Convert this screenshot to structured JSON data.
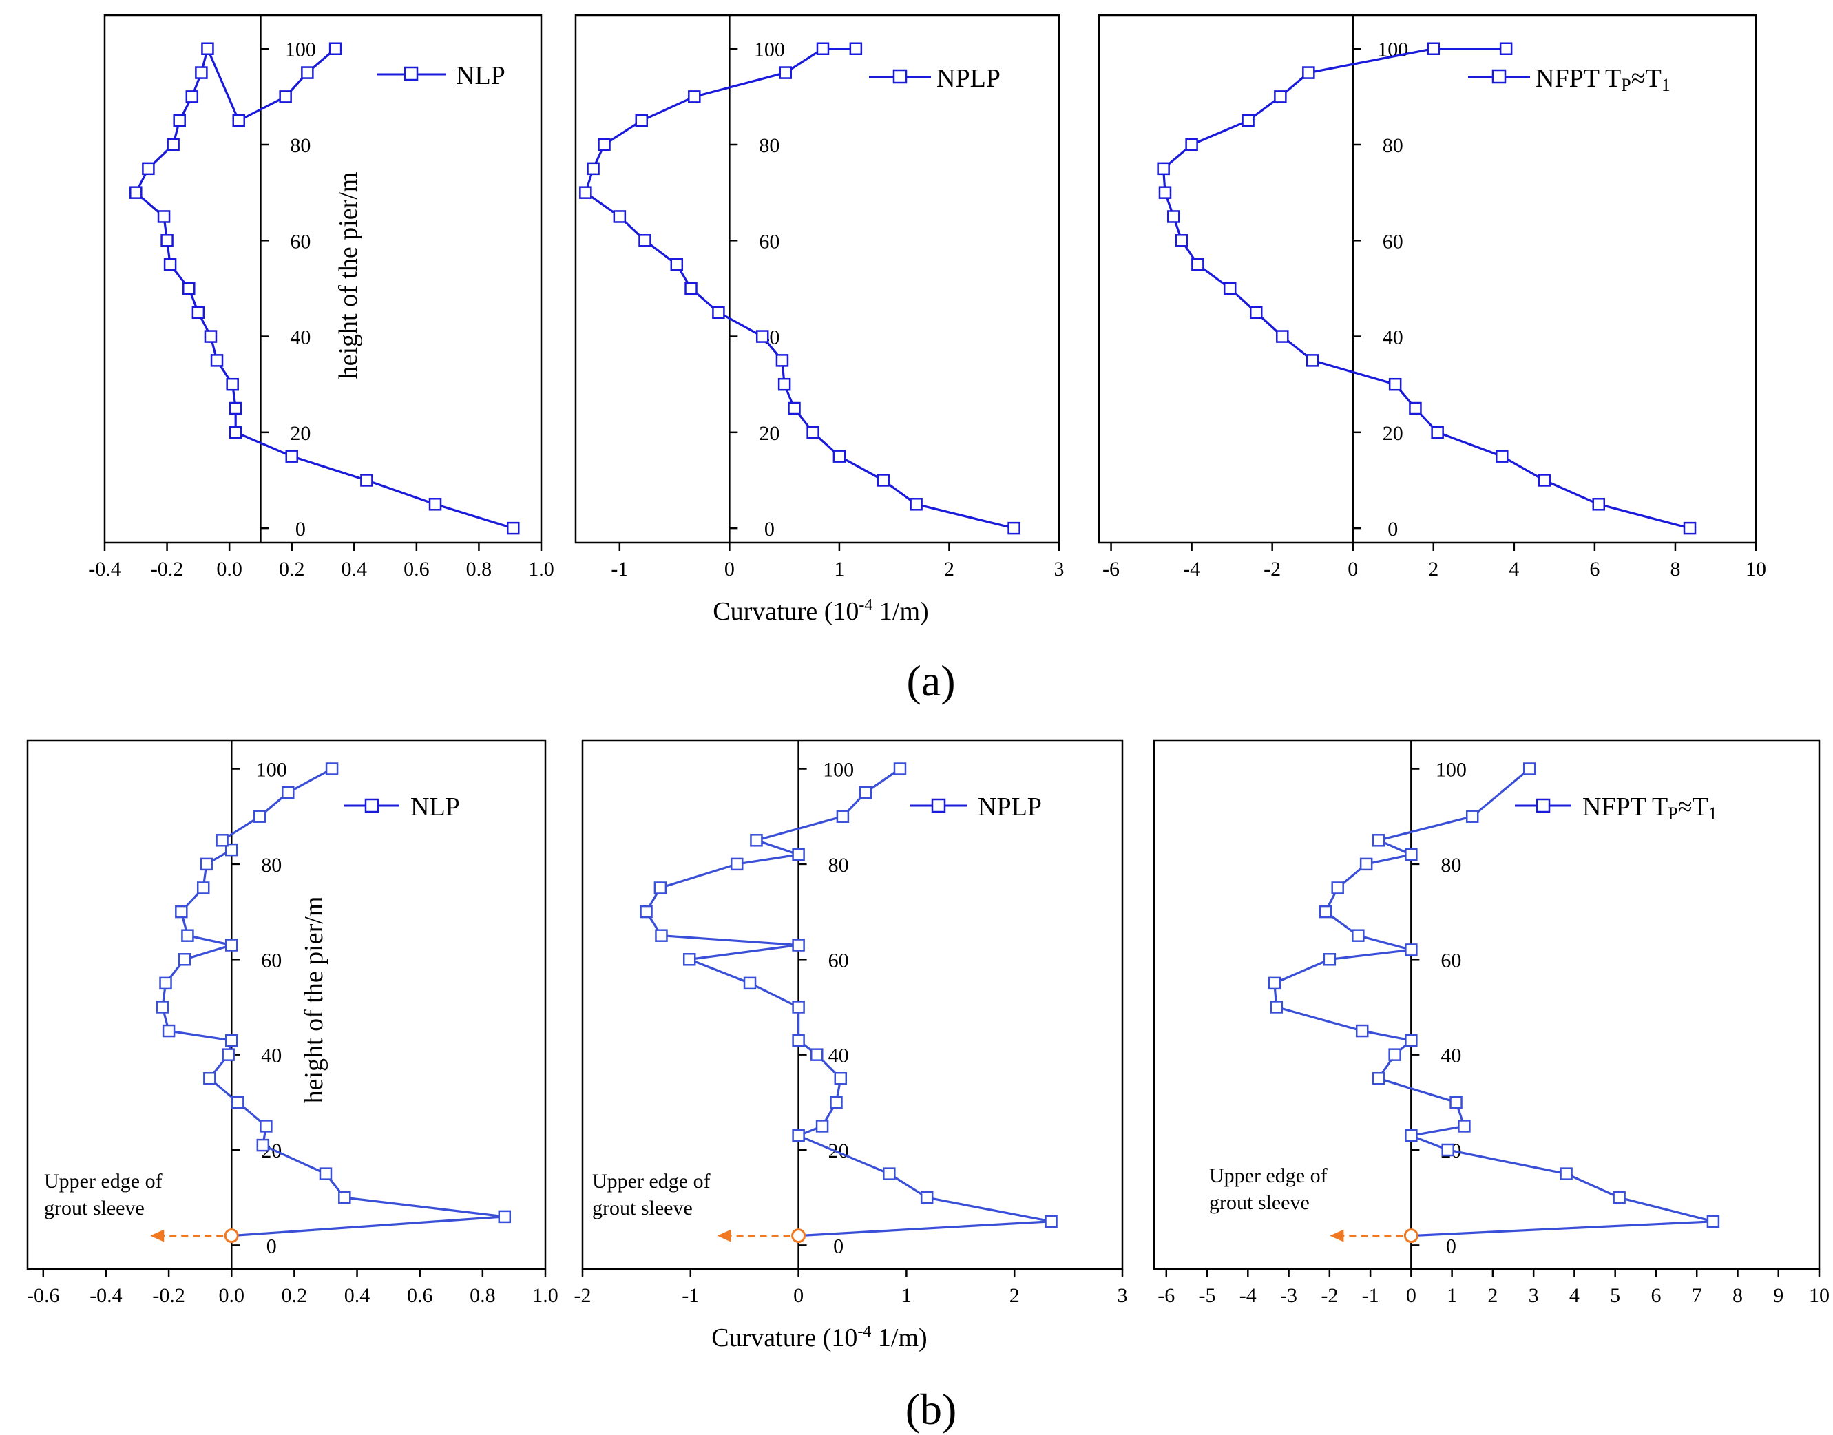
{
  "colors": {
    "series": "#1a1adc",
    "series_b": "#3a4fd8",
    "annotation": "#f07820",
    "axis": "#000000"
  },
  "figure": {
    "xlabel": "Curvature (10",
    "xlabel_exp": "-4",
    "xlabel_unit": " 1/m)",
    "ylabel": "height of the pier/m",
    "panel_a": "(a)",
    "panel_b": "(b)",
    "annotation": [
      "Upper edge of",
      "grout sleeve"
    ]
  },
  "chart_data": [
    {
      "type": "line",
      "id": "a1",
      "row": "a",
      "legend": "NLP",
      "xlim": [
        -0.4,
        1.0
      ],
      "xticks": [
        -0.4,
        -0.2,
        0.0,
        0.2,
        0.4,
        0.6,
        0.8,
        1.0
      ],
      "xtick_labels": [
        "-0.4",
        "-0.2",
        "0.0",
        "0.2",
        "0.4",
        "0.6",
        "0.8",
        "1.0"
      ],
      "zero_x": 0.1,
      "ylim": [
        -3,
        107
      ],
      "yticks": [
        0,
        20,
        40,
        60,
        80,
        100
      ],
      "ytick_labels": [
        "0",
        "20",
        "40",
        "60",
        "80",
        "100"
      ],
      "x": [
        0.91,
        0.66,
        0.44,
        0.2,
        0.02,
        0.02,
        0.01,
        -0.04,
        -0.06,
        -0.1,
        -0.13,
        -0.19,
        -0.2,
        -0.21,
        -0.3,
        -0.26,
        -0.18,
        -0.16,
        -0.12,
        -0.09,
        -0.07,
        0.03,
        0.18,
        0.25,
        0.34
      ],
      "y": [
        0,
        5,
        10,
        15,
        20,
        25,
        30,
        35,
        40,
        45,
        50,
        55,
        60,
        65,
        70,
        75,
        80,
        85,
        90,
        95,
        100,
        85,
        90,
        95,
        100
      ]
    },
    {
      "type": "line",
      "id": "a2",
      "row": "a",
      "legend": "NPLP",
      "xlim": [
        -1.4,
        3.0
      ],
      "xticks": [
        -1,
        0,
        1,
        2,
        3
      ],
      "xtick_labels": [
        "-1",
        "0",
        "1",
        "2",
        "3"
      ],
      "zero_x": 0.0,
      "ylim": [
        -3,
        107
      ],
      "yticks": [
        0,
        20,
        40,
        60,
        80,
        100
      ],
      "ytick_labels": [
        "0",
        "20",
        "40",
        "60",
        "80",
        "100"
      ],
      "x": [
        2.59,
        1.7,
        1.4,
        1.0,
        0.76,
        0.59,
        0.5,
        0.48,
        0.3,
        -0.1,
        -0.35,
        -0.48,
        -0.77,
        -1.0,
        -1.31,
        -1.24,
        -1.14,
        -0.8,
        -0.32,
        0.51,
        0.85,
        1.15
      ],
      "y": [
        0,
        5,
        10,
        15,
        20,
        25,
        30,
        35,
        40,
        45,
        50,
        55,
        60,
        65,
        70,
        75,
        80,
        85,
        90,
        95,
        100,
        100
      ]
    },
    {
      "type": "line",
      "id": "a3",
      "row": "a",
      "legend": "NFPT T",
      "legend_sub1": "P",
      "legend_mid": "≈T",
      "legend_sub2": "1",
      "xlim": [
        -6.3,
        10.0
      ],
      "xticks": [
        -6,
        -4,
        -2,
        0,
        2,
        4,
        6,
        8,
        10
      ],
      "xtick_labels": [
        "-6",
        "-4",
        "-2",
        "0",
        "2",
        "4",
        "6",
        "8",
        "10"
      ],
      "zero_x": 0.0,
      "ylim": [
        -3,
        107
      ],
      "yticks": [
        0,
        20,
        40,
        60,
        80,
        100
      ],
      "ytick_labels": [
        "0",
        "20",
        "40",
        "60",
        "80",
        "100"
      ],
      "x": [
        8.36,
        6.1,
        4.75,
        3.7,
        2.1,
        1.55,
        1.05,
        -1.0,
        -1.75,
        -2.4,
        -3.05,
        -3.85,
        -4.25,
        -4.45,
        -4.66,
        -4.7,
        -4.0,
        -2.6,
        -1.8,
        -1.1,
        2.0,
        3.8
      ],
      "y": [
        0,
        5,
        10,
        15,
        20,
        25,
        30,
        35,
        40,
        45,
        50,
        55,
        60,
        65,
        70,
        75,
        80,
        85,
        90,
        95,
        100,
        100
      ]
    },
    {
      "type": "line",
      "id": "b1",
      "row": "b",
      "legend": "NLP",
      "xlim": [
        -0.65,
        1.0
      ],
      "xticks": [
        -0.6,
        -0.4,
        -0.2,
        0.0,
        0.2,
        0.4,
        0.6,
        0.8,
        1.0
      ],
      "xtick_labels": [
        "-0.6",
        "-0.4",
        "-0.2",
        "0.0",
        "0.2",
        "0.4",
        "0.6",
        "0.8",
        "1.0"
      ],
      "zero_x": 0.0,
      "ylim": [
        -5,
        106
      ],
      "yticks": [
        0,
        20,
        40,
        60,
        80,
        100
      ],
      "ytick_labels": [
        "0",
        "20",
        "40",
        "60",
        "80",
        "100"
      ],
      "x": [
        0.0,
        0.87,
        0.36,
        0.3,
        0.1,
        0.11,
        0.02,
        -0.07,
        -0.01,
        0.0,
        -0.2,
        -0.22,
        -0.21,
        -0.15,
        0.0,
        -0.14,
        -0.16,
        -0.09,
        -0.08,
        0.0,
        -0.03,
        0.09,
        0.18,
        0.32
      ],
      "y": [
        2,
        6,
        10,
        15,
        21,
        25,
        30,
        35,
        40,
        43,
        45,
        50,
        55,
        60,
        63,
        65,
        70,
        75,
        80,
        83,
        85,
        90,
        95,
        100
      ]
    },
    {
      "type": "line",
      "id": "b2",
      "row": "b",
      "legend": "NPLP",
      "xlim": [
        -2.0,
        3.0
      ],
      "xticks": [
        -2,
        -1,
        0,
        1,
        2,
        3
      ],
      "xtick_labels": [
        "-2",
        "-1",
        "0",
        "1",
        "2",
        "3"
      ],
      "zero_x": 0.0,
      "ylim": [
        -5,
        106
      ],
      "yticks": [
        0,
        20,
        40,
        60,
        80,
        100
      ],
      "ytick_labels": [
        "0",
        "20",
        "40",
        "60",
        "80",
        "100"
      ],
      "x": [
        0.0,
        2.34,
        1.19,
        0.84,
        0.0,
        0.22,
        0.35,
        0.39,
        0.17,
        0.0,
        0.0,
        -0.45,
        -1.01,
        0.0,
        -1.27,
        -1.41,
        -1.28,
        -0.57,
        0.0,
        -0.39,
        0.41,
        0.62,
        0.94
      ],
      "y": [
        2,
        5,
        10,
        15,
        23,
        25,
        30,
        35,
        40,
        43,
        50,
        55,
        60,
        63,
        65,
        70,
        75,
        80,
        82,
        85,
        90,
        95,
        100
      ]
    },
    {
      "type": "line",
      "id": "b3",
      "row": "b",
      "legend": "NFPT T",
      "legend_sub1": "P",
      "legend_mid": "≈T",
      "legend_sub2": "1",
      "xlim": [
        -6.3,
        10.0
      ],
      "xticks": [
        -6,
        -5,
        -4,
        -3,
        -2,
        -1,
        0,
        1,
        2,
        3,
        4,
        5,
        6,
        7,
        8,
        9,
        10
      ],
      "xtick_labels": [
        "-6",
        "-5",
        "-4",
        "-3",
        "-2",
        "-1",
        "0",
        "1",
        "2",
        "3",
        "4",
        "5",
        "6",
        "7",
        "8",
        "9",
        "10"
      ],
      "zero_x": 0.0,
      "ylim": [
        -5,
        106
      ],
      "yticks": [
        0,
        20,
        40,
        60,
        80,
        100
      ],
      "ytick_labels": [
        "0",
        "20",
        "40",
        "60",
        "80",
        "100"
      ],
      "x": [
        0.0,
        7.4,
        5.1,
        3.8,
        0.9,
        0.0,
        1.3,
        1.1,
        -0.8,
        -0.4,
        0.0,
        -1.2,
        -3.3,
        -3.35,
        -2.0,
        0.0,
        -1.3,
        -2.1,
        -1.8,
        -1.1,
        0.0,
        -0.8,
        1.5,
        2.9
      ],
      "y": [
        2,
        5,
        10,
        15,
        20,
        23,
        25,
        30,
        35,
        40,
        43,
        45,
        50,
        55,
        60,
        62,
        65,
        70,
        75,
        80,
        82,
        85,
        90,
        100
      ]
    }
  ]
}
